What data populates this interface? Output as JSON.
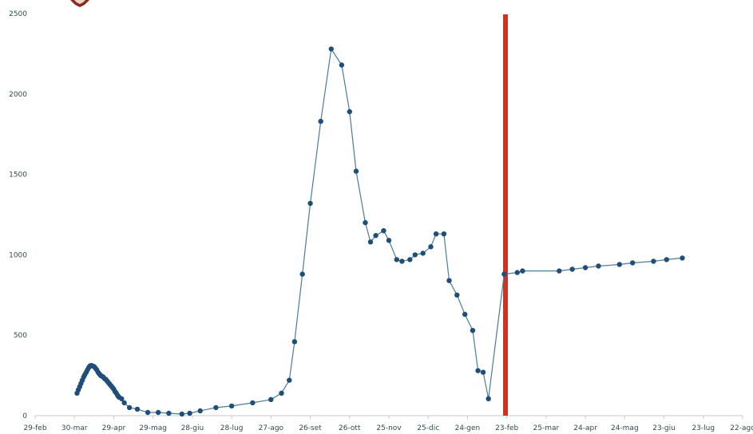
{
  "chart_data": {
    "type": "line",
    "title": "",
    "xlabel": "",
    "ylabel": "",
    "x_tick_labels": [
      "29-feb",
      "30-mar",
      "29-apr",
      "29-mag",
      "28-giu",
      "28-lug",
      "27-ago",
      "26-set",
      "26-ott",
      "25-nov",
      "25-dic",
      "24-gen",
      "23-feb",
      "25-mar",
      "24-apr",
      "24-mag",
      "23-giu",
      "23-lug",
      "22-ago"
    ],
    "y_tick_labels": [
      "0",
      "500",
      "1000",
      "1500",
      "2000",
      "2500"
    ],
    "ylim": [
      0,
      2500
    ],
    "x_day_range": [
      0,
      540
    ],
    "grid": false,
    "legend": "none",
    "line_color": "#4a7d95",
    "marker_color": "#1f4e79",
    "reference_line": {
      "color": "#cc3322",
      "x_day": 359
    },
    "series": [
      {
        "x_day": [
          32,
          33,
          34,
          35,
          36,
          37,
          38,
          39,
          40,
          41,
          42,
          43,
          44,
          45,
          46,
          47,
          48,
          49,
          50,
          51,
          52,
          53,
          54,
          55,
          56,
          57,
          58,
          59,
          60,
          61,
          62,
          63,
          64,
          66,
          68,
          72,
          78,
          86,
          94,
          102,
          112,
          118,
          126,
          138,
          150,
          166,
          180,
          188,
          194,
          198,
          204,
          210,
          218,
          226,
          234,
          240,
          245,
          252,
          256,
          260,
          266,
          270,
          276,
          280,
          286,
          290,
          296,
          302,
          306,
          312,
          316,
          322,
          328,
          334,
          338,
          342,
          346,
          358,
          368,
          372,
          400,
          410,
          420,
          430,
          446,
          456,
          472,
          482,
          494
        ],
        "y": [
          140,
          160,
          180,
          200,
          220,
          240,
          255,
          270,
          285,
          300,
          310,
          312,
          308,
          305,
          295,
          285,
          270,
          260,
          250,
          245,
          240,
          230,
          225,
          215,
          205,
          195,
          185,
          175,
          165,
          150,
          140,
          125,
          115,
          105,
          80,
          50,
          40,
          20,
          20,
          15,
          10,
          15,
          30,
          50,
          60,
          80,
          100,
          140,
          220,
          460,
          880,
          1320,
          1830,
          2280,
          2180,
          1890,
          1520,
          1200,
          1080,
          1120,
          1150,
          1090,
          970,
          960,
          970,
          1000,
          1010,
          1050,
          1130,
          1130,
          840,
          750,
          630,
          530,
          280,
          270,
          105,
          880,
          890,
          900,
          900,
          910,
          920,
          930,
          940,
          950,
          960,
          970,
          980
        ]
      }
    ]
  }
}
